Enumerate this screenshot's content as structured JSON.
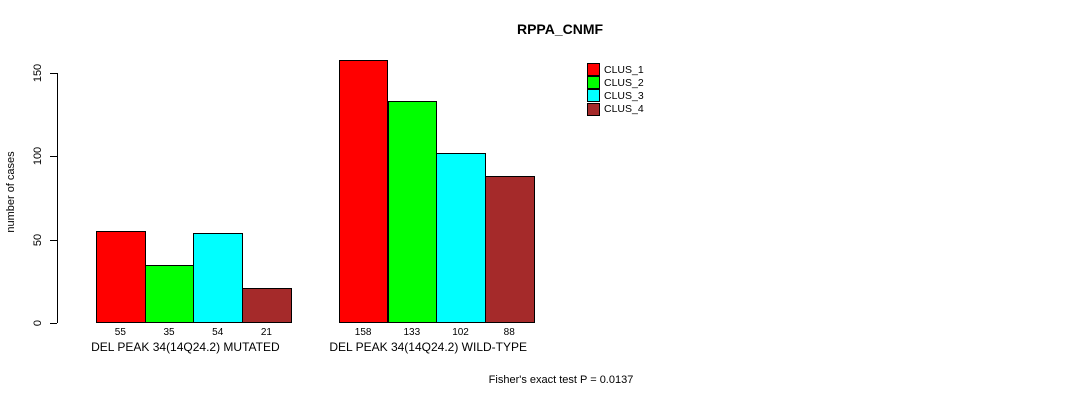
{
  "chart_data": {
    "type": "bar",
    "title": "RPPA_CNMF",
    "xlabel": "",
    "ylabel": "number of cases",
    "ylim": [
      0,
      150
    ],
    "yticks": [
      0,
      50,
      100,
      150
    ],
    "grid": false,
    "legend_position": "top-right",
    "bar_border_color": "#000000",
    "groups": [
      {
        "label": "DEL PEAK 34(14Q24.2) MUTATED",
        "values": [
          55,
          35,
          54,
          21
        ]
      },
      {
        "label": "DEL PEAK 34(14Q24.2) WILD-TYPE",
        "values": [
          158,
          133,
          102,
          88
        ]
      }
    ],
    "series": [
      {
        "name": "CLUS_1",
        "color": "#ff0000"
      },
      {
        "name": "CLUS_2",
        "color": "#00ff00"
      },
      {
        "name": "CLUS_3",
        "color": "#00ffff"
      },
      {
        "name": "CLUS_4",
        "color": "#a52a2a"
      }
    ],
    "footnote": "Fisher's exact test P = 0.0137"
  }
}
